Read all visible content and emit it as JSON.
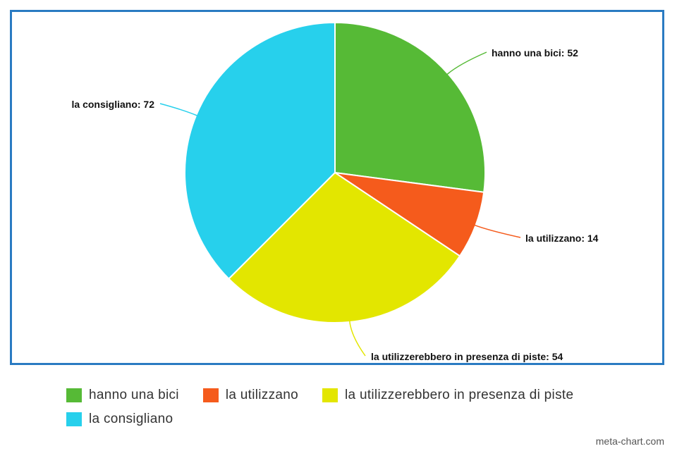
{
  "chart_data": {
    "type": "pie",
    "categories": [
      "hanno una bici",
      "la utilizzano",
      "la utilizzerebbero in presenza di piste",
      "la consigliano"
    ],
    "values": [
      52,
      14,
      54,
      72
    ],
    "colors": [
      "#56ba36",
      "#f55b1c",
      "#e3e600",
      "#27d0ec"
    ],
    "data_labels": [
      "hanno una bici: 52",
      "la utilizzano: 14",
      "la utilizzerebbero in presenza di piste: 54",
      "la consigliano: 72"
    ],
    "legend_position": "bottom"
  },
  "frame_color": "#2a7bc2",
  "watermark": "meta-chart.com"
}
